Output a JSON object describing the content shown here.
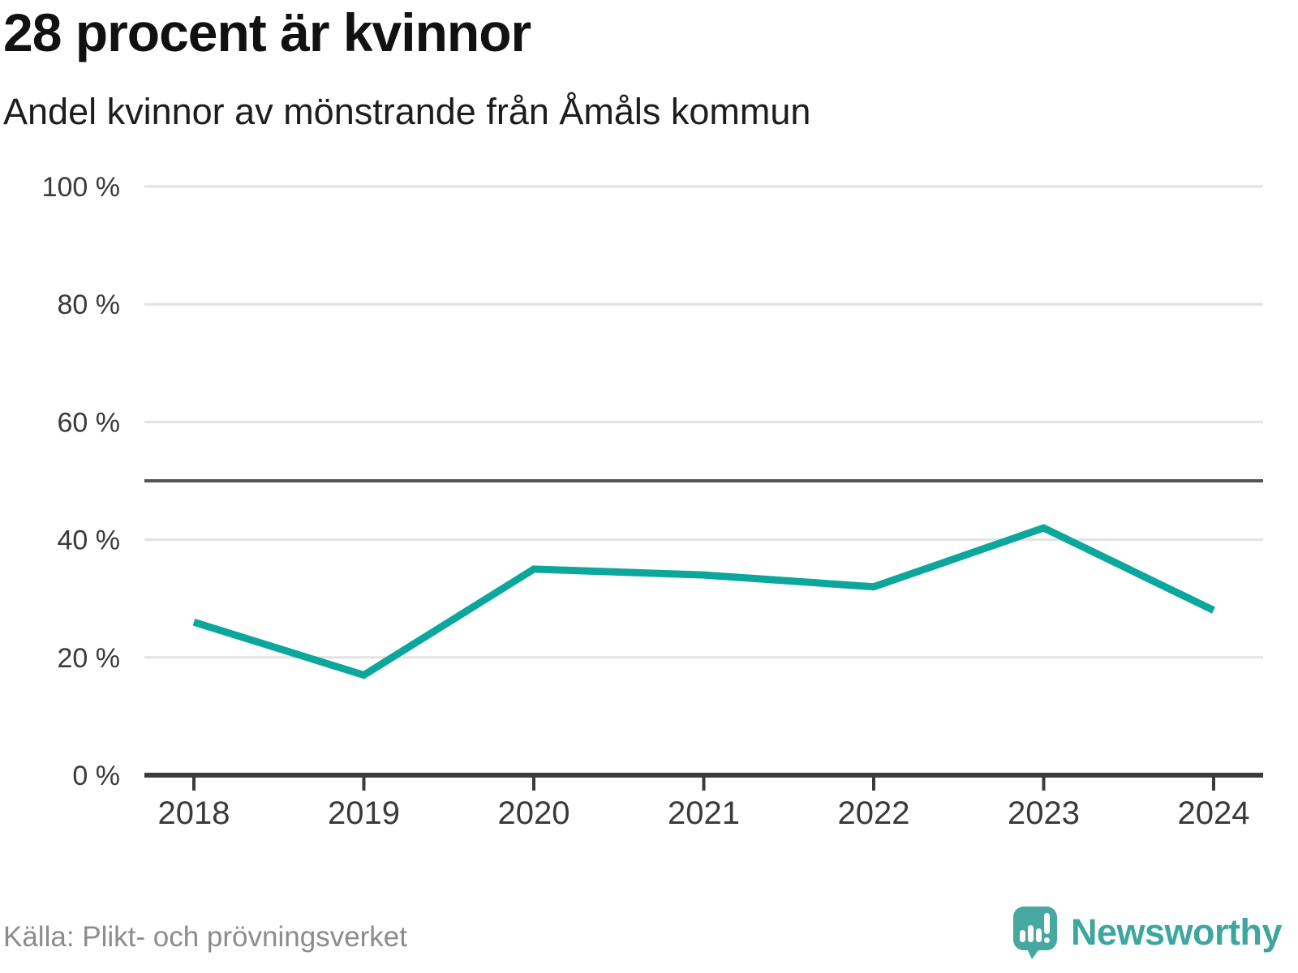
{
  "header": {
    "title": "28 procent är kvinnor",
    "subtitle": "Andel kvinnor av mönstrande från Åmåls kommun"
  },
  "chart_data": {
    "type": "line",
    "title": "28 procent är kvinnor",
    "subtitle": "Andel kvinnor av mönstrande från Åmåls kommun",
    "categories": [
      "2018",
      "2019",
      "2020",
      "2021",
      "2022",
      "2023",
      "2024"
    ],
    "series": [
      {
        "name": "Andel kvinnor av mönstrande",
        "values": [
          26,
          17,
          35,
          34,
          32,
          42,
          28
        ],
        "color": "#0ba79d"
      }
    ],
    "unit": "%",
    "ylim": [
      0,
      100
    ],
    "yticks": [
      0,
      20,
      40,
      60,
      80,
      100
    ],
    "ytick_suffix": " %",
    "reference_line": 50,
    "grid": true,
    "legend": "none"
  },
  "footer": {
    "source": "Källa: Plikt- och prövningsverket",
    "brand": "Newsworthy"
  },
  "colors": {
    "line": "#0ba79d",
    "grid": "#e2e2e2",
    "reference": "#545454",
    "axis": "#3b3b3b",
    "tick_label": "#3a3a3a",
    "title": "#111111",
    "subtitle": "#1d1d1d",
    "source": "#8c8c8c",
    "brand": "#3da69e"
  }
}
